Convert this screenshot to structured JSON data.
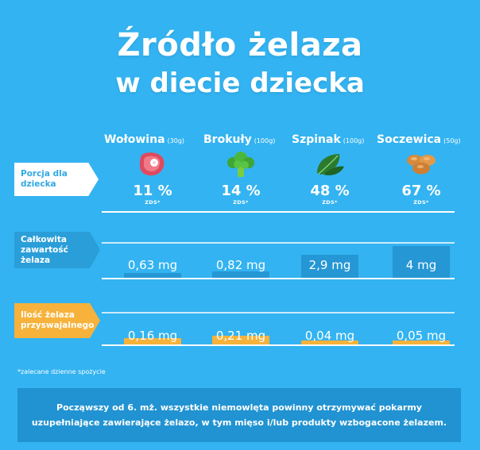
{
  "title_line1": "Źródło żelaza",
  "title_line2": "w diecie dziecka",
  "row_labels": {
    "portion": "Porcja dla dziecka",
    "total": "Całkowita zawartość żelaza",
    "absorbed": "Ilość żelaza przyswajalnego"
  },
  "zds_label": "ZDS*",
  "footnote": "*zalecane dzienne spożycie",
  "info_text": "Począwszy od 6. mż. wszystkie niemowlęta powinny otrzymywać pokarmy uzupełniające zawierające żelazo, w tym mięso i/lub produkty wzbogacone żelazem.",
  "foods": [
    {
      "name": "Wołowina",
      "portion": "(30g)",
      "icon": "steak-icon",
      "pct": "11 %",
      "total_label": "0,63 mg",
      "absorbed_label": "0,16 mg"
    },
    {
      "name": "Brokuły",
      "portion": "(100g)",
      "icon": "broccoli-icon",
      "pct": "14 %",
      "total_label": "0,82 mg",
      "absorbed_label": "0,21 mg"
    },
    {
      "name": "Szpinak",
      "portion": "(100g)",
      "icon": "spinach-icon",
      "pct": "48 %",
      "total_label": "2,9 mg",
      "absorbed_label": "0,04 mg"
    },
    {
      "name": "Soczewica",
      "portion": "(50g)",
      "icon": "lentils-icon",
      "pct": "67 %",
      "total_label": "4 mg",
      "absorbed_label": "0,05 mg"
    }
  ],
  "colors": {
    "background": "#33b3f1",
    "total_bar": "#2597d4",
    "absorbed_bar": "#f6b23b",
    "info_box": "#2193d2"
  },
  "chart_data": {
    "type": "bar",
    "categories": [
      "Wołowina (30g)",
      "Brokuły (100g)",
      "Szpinak (100g)",
      "Soczewica (50g)"
    ],
    "series": [
      {
        "name": "Porcja dla dziecka",
        "unit": "% ZDS*",
        "values": [
          11,
          14,
          48,
          67
        ]
      },
      {
        "name": "Całkowita zawartość żelaza",
        "unit": "mg",
        "values": [
          0.63,
          0.82,
          2.9,
          4
        ]
      },
      {
        "name": "Ilość żelaza przyswajalnego",
        "unit": "mg",
        "values": [
          0.16,
          0.21,
          0.04,
          0.05
        ]
      }
    ]
  }
}
